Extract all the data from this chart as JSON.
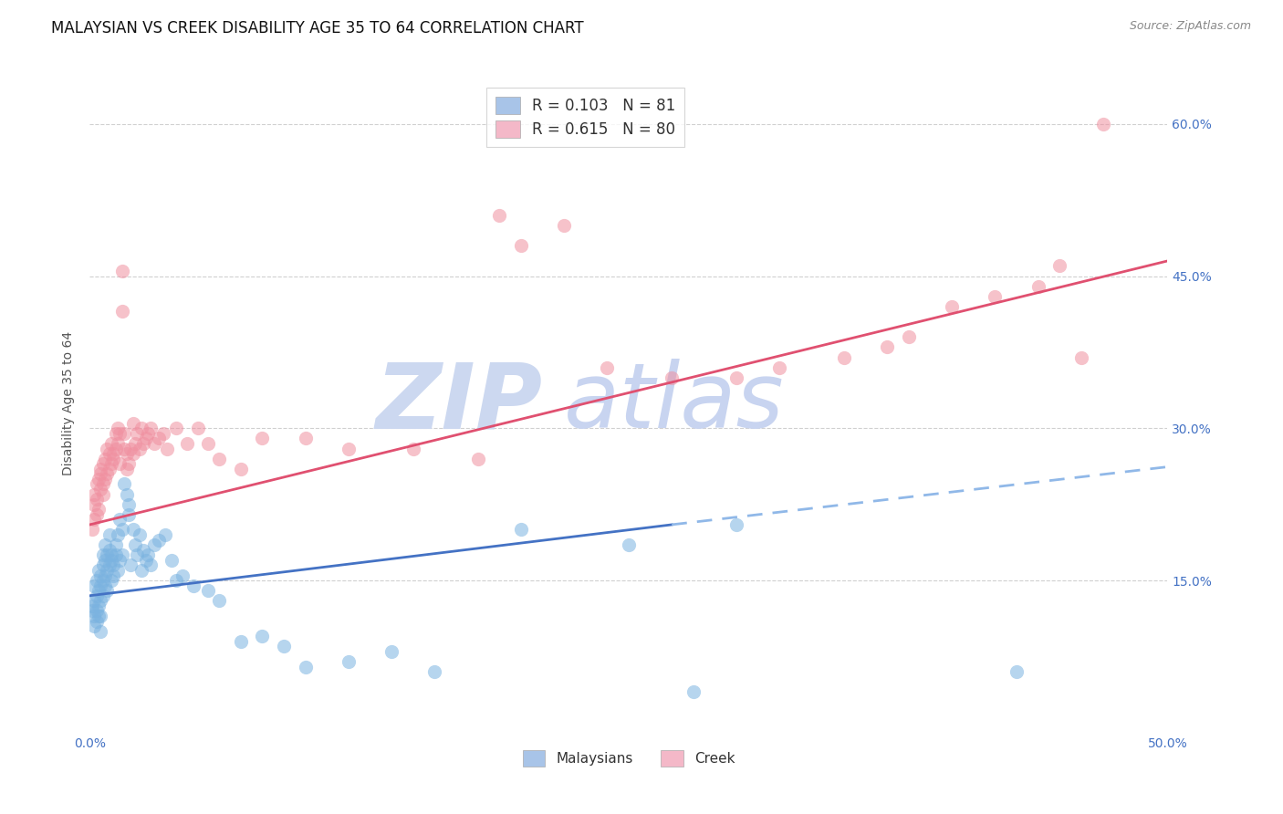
{
  "title": "MALAYSIAN VS CREEK DISABILITY AGE 35 TO 64 CORRELATION CHART",
  "source": "Source: ZipAtlas.com",
  "ylabel": "Disability Age 35 to 64",
  "xlim": [
    0.0,
    0.5
  ],
  "ylim": [
    0.0,
    0.65
  ],
  "xticks": [
    0.0,
    0.1,
    0.2,
    0.3,
    0.4,
    0.5
  ],
  "xticklabels": [
    "0.0%",
    "",
    "",
    "",
    "",
    "50.0%"
  ],
  "ytick_vals": [
    0.15,
    0.3,
    0.45,
    0.6
  ],
  "ytick_labels": [
    "15.0%",
    "30.0%",
    "45.0%",
    "60.0%"
  ],
  "legend_entries": [
    {
      "label": "R = 0.103   N = 81",
      "facecolor": "#a8c4e8"
    },
    {
      "label": "R = 0.615   N = 80",
      "facecolor": "#f4b8c8"
    }
  ],
  "malaysian_dot_color": "#7bb3e0",
  "creek_dot_color": "#f090a0",
  "trend_malaysian_solid_color": "#4472c4",
  "trend_malaysian_dashed_color": "#90b8e8",
  "trend_creek_color": "#e05070",
  "watermark_zip_color": "#ccd8f0",
  "watermark_atlas_color": "#c8d4f0",
  "background_color": "#ffffff",
  "grid_color": "#d0d0d0",
  "bottom_legend": [
    {
      "label": "Malaysians",
      "facecolor": "#a8c4e8"
    },
    {
      "label": "Creek",
      "facecolor": "#f4b8c8"
    }
  ],
  "mal_trend_x0": 0.0,
  "mal_trend_y0": 0.135,
  "mal_trend_x1": 0.27,
  "mal_trend_y1": 0.205,
  "mal_trend_dash_x0": 0.27,
  "mal_trend_dash_y0": 0.205,
  "mal_trend_dash_x1": 0.5,
  "mal_trend_dash_y1": 0.262,
  "creek_trend_x0": 0.0,
  "creek_trend_y0": 0.205,
  "creek_trend_x1": 0.5,
  "creek_trend_y1": 0.465,
  "malaysian_scatter": [
    [
      0.001,
      0.125
    ],
    [
      0.001,
      0.12
    ],
    [
      0.002,
      0.115
    ],
    [
      0.002,
      0.13
    ],
    [
      0.002,
      0.105
    ],
    [
      0.002,
      0.145
    ],
    [
      0.003,
      0.11
    ],
    [
      0.003,
      0.135
    ],
    [
      0.003,
      0.15
    ],
    [
      0.003,
      0.12
    ],
    [
      0.004,
      0.125
    ],
    [
      0.004,
      0.14
    ],
    [
      0.004,
      0.16
    ],
    [
      0.004,
      0.115
    ],
    [
      0.005,
      0.145
    ],
    [
      0.005,
      0.13
    ],
    [
      0.005,
      0.115
    ],
    [
      0.005,
      0.155
    ],
    [
      0.005,
      0.1
    ],
    [
      0.006,
      0.165
    ],
    [
      0.006,
      0.175
    ],
    [
      0.006,
      0.15
    ],
    [
      0.006,
      0.135
    ],
    [
      0.007,
      0.17
    ],
    [
      0.007,
      0.155
    ],
    [
      0.007,
      0.185
    ],
    [
      0.007,
      0.145
    ],
    [
      0.008,
      0.175
    ],
    [
      0.008,
      0.16
    ],
    [
      0.008,
      0.14
    ],
    [
      0.009,
      0.165
    ],
    [
      0.009,
      0.18
    ],
    [
      0.009,
      0.195
    ],
    [
      0.01,
      0.15
    ],
    [
      0.01,
      0.17
    ],
    [
      0.01,
      0.175
    ],
    [
      0.011,
      0.165
    ],
    [
      0.011,
      0.155
    ],
    [
      0.012,
      0.175
    ],
    [
      0.012,
      0.185
    ],
    [
      0.013,
      0.16
    ],
    [
      0.013,
      0.195
    ],
    [
      0.014,
      0.17
    ],
    [
      0.014,
      0.21
    ],
    [
      0.015,
      0.175
    ],
    [
      0.015,
      0.2
    ],
    [
      0.016,
      0.245
    ],
    [
      0.017,
      0.235
    ],
    [
      0.018,
      0.225
    ],
    [
      0.018,
      0.215
    ],
    [
      0.019,
      0.165
    ],
    [
      0.02,
      0.2
    ],
    [
      0.021,
      0.185
    ],
    [
      0.022,
      0.175
    ],
    [
      0.023,
      0.195
    ],
    [
      0.024,
      0.16
    ],
    [
      0.025,
      0.18
    ],
    [
      0.026,
      0.17
    ],
    [
      0.027,
      0.175
    ],
    [
      0.028,
      0.165
    ],
    [
      0.03,
      0.185
    ],
    [
      0.032,
      0.19
    ],
    [
      0.035,
      0.195
    ],
    [
      0.038,
      0.17
    ],
    [
      0.04,
      0.15
    ],
    [
      0.043,
      0.155
    ],
    [
      0.048,
      0.145
    ],
    [
      0.055,
      0.14
    ],
    [
      0.06,
      0.13
    ],
    [
      0.07,
      0.09
    ],
    [
      0.08,
      0.095
    ],
    [
      0.09,
      0.085
    ],
    [
      0.1,
      0.065
    ],
    [
      0.12,
      0.07
    ],
    [
      0.14,
      0.08
    ],
    [
      0.16,
      0.06
    ],
    [
      0.2,
      0.2
    ],
    [
      0.25,
      0.185
    ],
    [
      0.28,
      0.04
    ],
    [
      0.3,
      0.205
    ],
    [
      0.43,
      0.06
    ]
  ],
  "creek_scatter": [
    [
      0.001,
      0.2
    ],
    [
      0.002,
      0.225
    ],
    [
      0.002,
      0.21
    ],
    [
      0.002,
      0.235
    ],
    [
      0.003,
      0.215
    ],
    [
      0.003,
      0.23
    ],
    [
      0.003,
      0.245
    ],
    [
      0.004,
      0.22
    ],
    [
      0.004,
      0.25
    ],
    [
      0.005,
      0.24
    ],
    [
      0.005,
      0.255
    ],
    [
      0.005,
      0.26
    ],
    [
      0.006,
      0.235
    ],
    [
      0.006,
      0.245
    ],
    [
      0.006,
      0.265
    ],
    [
      0.007,
      0.25
    ],
    [
      0.007,
      0.27
    ],
    [
      0.008,
      0.255
    ],
    [
      0.008,
      0.28
    ],
    [
      0.009,
      0.26
    ],
    [
      0.009,
      0.275
    ],
    [
      0.01,
      0.265
    ],
    [
      0.01,
      0.285
    ],
    [
      0.011,
      0.27
    ],
    [
      0.011,
      0.275
    ],
    [
      0.012,
      0.28
    ],
    [
      0.012,
      0.295
    ],
    [
      0.013,
      0.285
    ],
    [
      0.013,
      0.3
    ],
    [
      0.014,
      0.265
    ],
    [
      0.014,
      0.295
    ],
    [
      0.015,
      0.415
    ],
    [
      0.015,
      0.455
    ],
    [
      0.016,
      0.28
    ],
    [
      0.016,
      0.295
    ],
    [
      0.017,
      0.26
    ],
    [
      0.017,
      0.275
    ],
    [
      0.018,
      0.265
    ],
    [
      0.019,
      0.28
    ],
    [
      0.02,
      0.305
    ],
    [
      0.02,
      0.275
    ],
    [
      0.021,
      0.285
    ],
    [
      0.022,
      0.295
    ],
    [
      0.023,
      0.28
    ],
    [
      0.024,
      0.3
    ],
    [
      0.025,
      0.285
    ],
    [
      0.026,
      0.29
    ],
    [
      0.027,
      0.295
    ],
    [
      0.028,
      0.3
    ],
    [
      0.03,
      0.285
    ],
    [
      0.032,
      0.29
    ],
    [
      0.034,
      0.295
    ],
    [
      0.036,
      0.28
    ],
    [
      0.04,
      0.3
    ],
    [
      0.045,
      0.285
    ],
    [
      0.05,
      0.3
    ],
    [
      0.055,
      0.285
    ],
    [
      0.06,
      0.27
    ],
    [
      0.07,
      0.26
    ],
    [
      0.08,
      0.29
    ],
    [
      0.1,
      0.29
    ],
    [
      0.12,
      0.28
    ],
    [
      0.15,
      0.28
    ],
    [
      0.18,
      0.27
    ],
    [
      0.19,
      0.51
    ],
    [
      0.2,
      0.48
    ],
    [
      0.22,
      0.5
    ],
    [
      0.24,
      0.36
    ],
    [
      0.27,
      0.35
    ],
    [
      0.3,
      0.35
    ],
    [
      0.32,
      0.36
    ],
    [
      0.35,
      0.37
    ],
    [
      0.37,
      0.38
    ],
    [
      0.38,
      0.39
    ],
    [
      0.4,
      0.42
    ],
    [
      0.42,
      0.43
    ],
    [
      0.44,
      0.44
    ],
    [
      0.45,
      0.46
    ],
    [
      0.46,
      0.37
    ],
    [
      0.47,
      0.6
    ]
  ]
}
